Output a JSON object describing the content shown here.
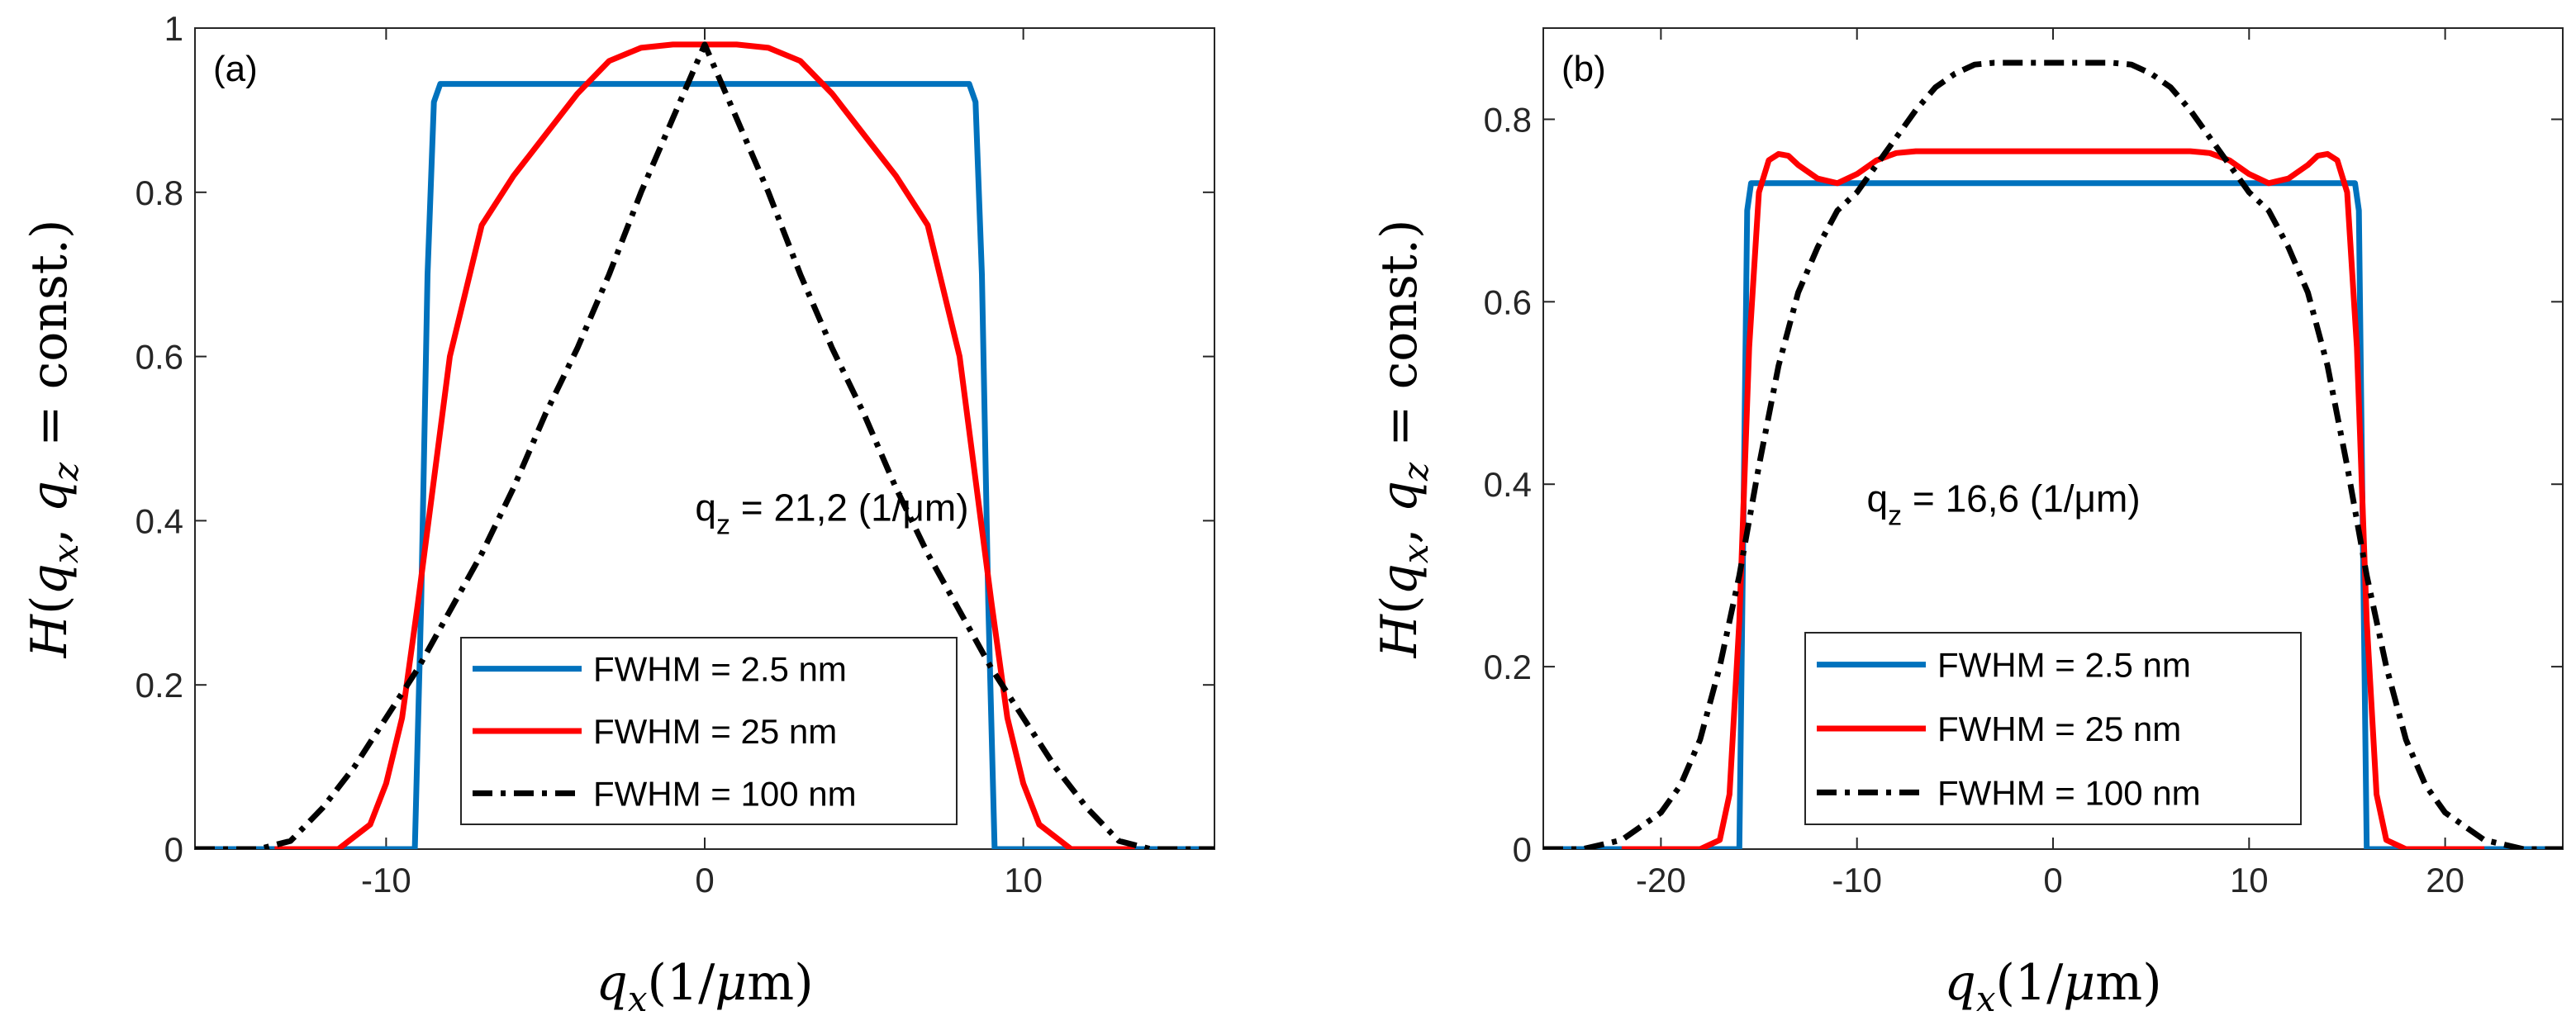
{
  "chart_data": [
    {
      "type": "line",
      "panel_label": "(a)",
      "xlabel": "q_x(1/μm)",
      "ylabel": "H(q_x, q_z = const.)",
      "xlim": [
        -16,
        16
      ],
      "ylim": [
        0,
        1
      ],
      "xticks": [
        -10,
        0,
        10
      ],
      "xtick_labels": [
        "-10",
        "0",
        "10"
      ],
      "yticks": [
        0,
        0.2,
        0.4,
        0.6,
        0.8,
        1
      ],
      "ytick_labels": [
        "0",
        "0.2",
        "0.4",
        "0.6",
        "0.8",
        "1"
      ],
      "annotation": {
        "main": "q",
        "sub": "z",
        "rest": " = 21,2 (1/μm)",
        "x": -0.3,
        "y": 0.4
      },
      "legend_position": "lower-center",
      "series": [
        {
          "name": "FWHM = 2.5 nm",
          "color": "#0072BD",
          "style": "solid",
          "x": [
            -16,
            -9.1,
            -8.9,
            -8.7,
            -8.5,
            -8.3,
            8.3,
            8.5,
            8.7,
            8.9,
            9.1,
            16
          ],
          "y": [
            0,
            0,
            0.3,
            0.7,
            0.91,
            0.932,
            0.932,
            0.91,
            0.7,
            0.3,
            0,
            0
          ]
        },
        {
          "name": "FWHM = 25 nm",
          "color": "#FF0000",
          "style": "solid",
          "x": [
            -13.5,
            -11.5,
            -10.5,
            -10,
            -9.5,
            -9,
            -8.5,
            -8,
            -7,
            -6,
            -5,
            -4,
            -3,
            -2,
            -1,
            0,
            1,
            2,
            3,
            4,
            5,
            6,
            7,
            8,
            8.5,
            9,
            9.5,
            10,
            10.5,
            11.5,
            13.5
          ],
          "y": [
            0,
            0,
            0.03,
            0.08,
            0.16,
            0.3,
            0.45,
            0.6,
            0.76,
            0.82,
            0.87,
            0.92,
            0.96,
            0.976,
            0.98,
            0.98,
            0.98,
            0.976,
            0.96,
            0.92,
            0.87,
            0.82,
            0.76,
            0.6,
            0.45,
            0.3,
            0.16,
            0.08,
            0.03,
            0,
            0
          ]
        },
        {
          "name": "FWHM = 100 nm",
          "color": "#000000",
          "style": "dashdot",
          "x": [
            -16,
            -14,
            -13,
            -12,
            -11,
            -10,
            -9,
            -8,
            -7,
            -6,
            -5,
            -4,
            -3,
            -2,
            -1,
            0,
            1,
            2,
            3,
            4,
            5,
            6,
            7,
            8,
            9,
            10,
            11,
            12,
            13,
            14,
            16
          ],
          "y": [
            0,
            0,
            0.01,
            0.05,
            0.1,
            0.16,
            0.22,
            0.29,
            0.36,
            0.44,
            0.53,
            0.61,
            0.7,
            0.8,
            0.89,
            0.98,
            0.89,
            0.8,
            0.7,
            0.61,
            0.53,
            0.44,
            0.36,
            0.29,
            0.22,
            0.16,
            0.1,
            0.05,
            0.01,
            0,
            0
          ]
        }
      ]
    },
    {
      "type": "line",
      "panel_label": "(b)",
      "xlabel": "q_x(1/μm)",
      "ylabel": "H(q_x, q_z = const.)",
      "xlim": [
        -26,
        26
      ],
      "ylim": [
        0,
        0.9
      ],
      "xticks": [
        -20,
        -10,
        0,
        10,
        20
      ],
      "xtick_labels": [
        "-20",
        "-10",
        "0",
        "10",
        "20"
      ],
      "yticks": [
        0,
        0.2,
        0.4,
        0.6,
        0.8
      ],
      "ytick_labels": [
        "0",
        "0.2",
        "0.4",
        "0.6",
        "0.8"
      ],
      "annotation": {
        "main": "q",
        "sub": "z",
        "rest": " = 16,6 (1/μm)",
        "x": -9.5,
        "y": 0.37
      },
      "legend_position": "lower-center",
      "series": [
        {
          "name": "FWHM = 2.5 nm",
          "color": "#0072BD",
          "style": "solid",
          "x": [
            -26,
            -16,
            -15.8,
            -15.6,
            -15.4,
            15.4,
            15.6,
            15.8,
            16,
            26
          ],
          "y": [
            0,
            0,
            0.35,
            0.7,
            0.73,
            0.73,
            0.7,
            0.35,
            0,
            0
          ]
        },
        {
          "name": "FWHM = 25 nm",
          "color": "#FF0000",
          "style": "solid",
          "x": [
            -22,
            -18,
            -17,
            -16.5,
            -16,
            -15.5,
            -15,
            -14.5,
            -14,
            -13.5,
            -13,
            -12,
            -11,
            -10,
            -9,
            -8,
            -7,
            0,
            7,
            8,
            9,
            10,
            11,
            12,
            13,
            13.5,
            14,
            14.5,
            15,
            15.5,
            16,
            16.5,
            17,
            18,
            22
          ],
          "y": [
            0,
            0,
            0.01,
            0.06,
            0.25,
            0.55,
            0.72,
            0.755,
            0.762,
            0.76,
            0.75,
            0.735,
            0.73,
            0.74,
            0.755,
            0.763,
            0.765,
            0.765,
            0.765,
            0.763,
            0.755,
            0.74,
            0.73,
            0.735,
            0.75,
            0.76,
            0.762,
            0.755,
            0.72,
            0.55,
            0.25,
            0.06,
            0.01,
            0,
            0
          ]
        },
        {
          "name": "FWHM = 100 nm",
          "color": "#000000",
          "style": "dashdot",
          "x": [
            -26,
            -24,
            -22,
            -20,
            -19,
            -18,
            -17,
            -16,
            -15,
            -14,
            -13,
            -12,
            -11,
            -10,
            -9,
            -8,
            -7,
            -6,
            -5,
            -4,
            -3,
            0,
            3,
            4,
            5,
            6,
            7,
            8,
            9,
            10,
            11,
            12,
            13,
            14,
            15,
            16,
            17,
            18,
            19,
            20,
            22,
            24,
            26
          ],
          "y": [
            0,
            0,
            0.01,
            0.04,
            0.07,
            0.12,
            0.2,
            0.3,
            0.42,
            0.53,
            0.61,
            0.66,
            0.7,
            0.72,
            0.75,
            0.78,
            0.81,
            0.835,
            0.85,
            0.86,
            0.862,
            0.862,
            0.862,
            0.86,
            0.85,
            0.835,
            0.81,
            0.78,
            0.75,
            0.72,
            0.7,
            0.66,
            0.61,
            0.53,
            0.42,
            0.3,
            0.2,
            0.12,
            0.07,
            0.04,
            0.01,
            0,
            0
          ]
        }
      ]
    }
  ]
}
